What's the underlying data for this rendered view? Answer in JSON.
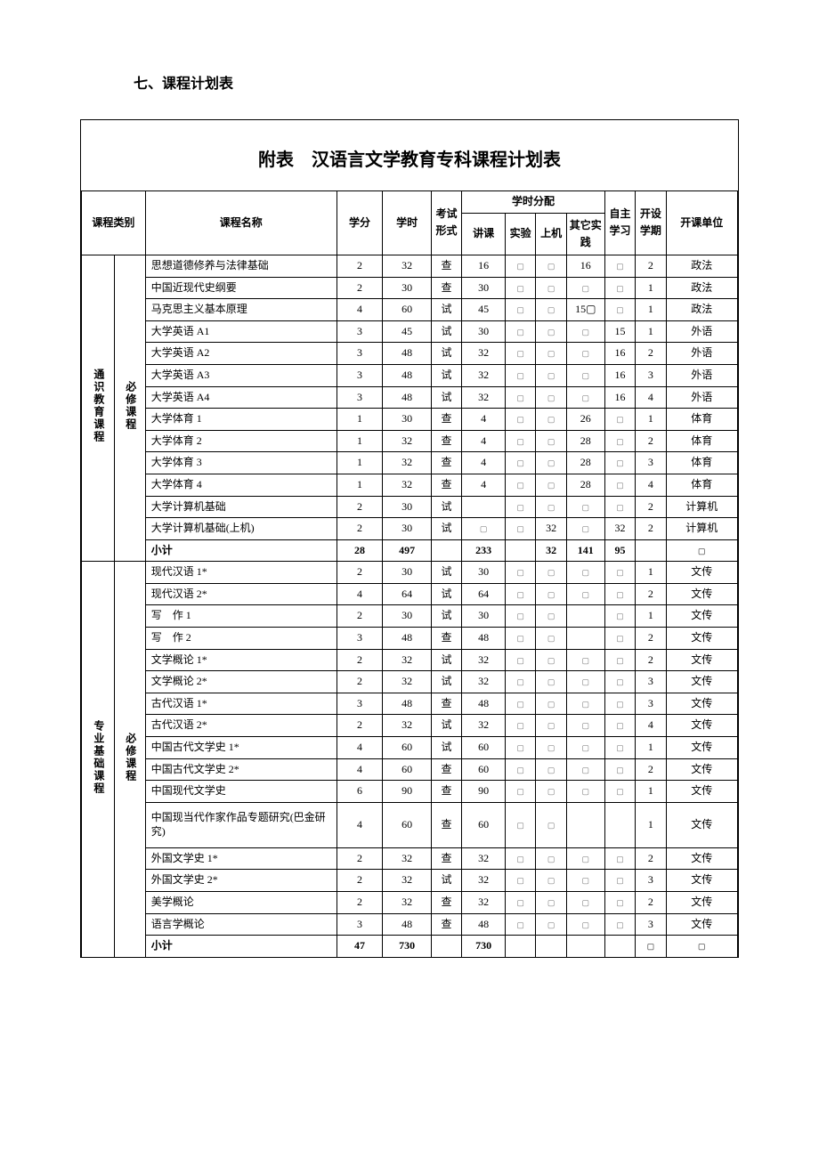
{
  "section_heading": "七、课程计划表",
  "table_title_prefix": "附表",
  "table_title_rest": "　汉语言文学教育专科课程计划表",
  "headers": {
    "category": "课程类别",
    "course_name": "课程名称",
    "credit": "学分",
    "hours": "学时",
    "exam_form": "考试形式",
    "hour_dist": "学时分配",
    "lecture": "讲课",
    "lab": "实验",
    "computer": "上机",
    "other_practice": "其它实践",
    "self_study": "自主学习",
    "semester": "开设学期",
    "department": "开课单位"
  },
  "groups": [
    {
      "cat1": "通识教育课程",
      "cat2": "必修课程",
      "rows": [
        {
          "name": "思想道德修养与法律基础",
          "credit": "2",
          "hours": "32",
          "exam": "查",
          "lecture": "16",
          "lab": "▢",
          "comp": "▢",
          "other": "16",
          "self": "▢",
          "sem": "2",
          "dept": "政法"
        },
        {
          "name": "中国近现代史纲要",
          "credit": "2",
          "hours": "30",
          "exam": "查",
          "lecture": "30",
          "lab": "▢",
          "comp": "▢",
          "other": "▢",
          "self": "▢",
          "sem": "1",
          "dept": "政法"
        },
        {
          "name": "马克思主义基本原理",
          "credit": "4",
          "hours": "60",
          "exam": "试",
          "lecture": "45",
          "lab": "▢",
          "comp": "▢",
          "other": "15▢",
          "self": "▢",
          "sem": "1",
          "dept": "政法"
        },
        {
          "name": "大学英语 A1",
          "credit": "3",
          "hours": "45",
          "exam": "试",
          "lecture": "30",
          "lab": "▢",
          "comp": "▢",
          "other": "▢",
          "self": "15",
          "sem": "1",
          "dept": "外语"
        },
        {
          "name": "大学英语 A2",
          "credit": "3",
          "hours": "48",
          "exam": "试",
          "lecture": "32",
          "lab": "▢",
          "comp": "▢",
          "other": "▢",
          "self": "16",
          "sem": "2",
          "dept": "外语"
        },
        {
          "name": "大学英语 A3",
          "credit": "3",
          "hours": "48",
          "exam": "试",
          "lecture": "32",
          "lab": "▢",
          "comp": "▢",
          "other": "▢",
          "self": "16",
          "sem": "3",
          "dept": "外语"
        },
        {
          "name": "大学英语 A4",
          "credit": "3",
          "hours": "48",
          "exam": "试",
          "lecture": "32",
          "lab": "▢",
          "comp": "▢",
          "other": "▢",
          "self": "16",
          "sem": "4",
          "dept": "外语"
        },
        {
          "name": "大学体育 1",
          "credit": "1",
          "hours": "30",
          "exam": "查",
          "lecture": "4",
          "lab": "▢",
          "comp": "▢",
          "other": "26",
          "self": "▢",
          "sem": "1",
          "dept": "体育"
        },
        {
          "name": "大学体育 2",
          "credit": "1",
          "hours": "32",
          "exam": "查",
          "lecture": "4",
          "lab": "▢",
          "comp": "▢",
          "other": "28",
          "self": "▢",
          "sem": "2",
          "dept": "体育"
        },
        {
          "name": "大学体育 3",
          "credit": "1",
          "hours": "32",
          "exam": "查",
          "lecture": "4",
          "lab": "▢",
          "comp": "▢",
          "other": "28",
          "self": "▢",
          "sem": "3",
          "dept": "体育"
        },
        {
          "name": "大学体育 4",
          "credit": "1",
          "hours": "32",
          "exam": "查",
          "lecture": "4",
          "lab": "▢",
          "comp": "▢",
          "other": "28",
          "self": "▢",
          "sem": "4",
          "dept": "体育"
        },
        {
          "name": "大学计算机基础",
          "credit": "2",
          "hours": "30",
          "exam": "试",
          "lecture": "",
          "lab": "▢",
          "comp": "▢",
          "other": "▢",
          "self": "▢",
          "sem": "2",
          "dept": "计算机"
        },
        {
          "name": "大学计算机基础(上机)",
          "credit": "2",
          "hours": "30",
          "exam": "试",
          "lecture": "▢",
          "lab": "▢",
          "comp": "32",
          "other": "▢",
          "self": "32",
          "sem": "2",
          "dept": "计算机"
        }
      ],
      "subtotal": {
        "name": "小计",
        "credit": "28",
        "hours": "497",
        "exam": "",
        "lecture": "233",
        "lab": "",
        "comp": "32",
        "other": "141",
        "self": "95",
        "sem": "",
        "dept": "▢"
      }
    },
    {
      "cat1": "专业基础课程",
      "cat2": "必修课程",
      "rows": [
        {
          "name": "现代汉语 1*",
          "credit": "2",
          "hours": "30",
          "exam": "试",
          "lecture": "30",
          "lab": "▢",
          "comp": "▢",
          "other": "▢",
          "self": "▢",
          "sem": "1",
          "dept": "文传"
        },
        {
          "name": "现代汉语 2*",
          "credit": "4",
          "hours": "64",
          "exam": "试",
          "lecture": "64",
          "lab": "▢",
          "comp": "▢",
          "other": "▢",
          "self": "▢",
          "sem": "2",
          "dept": "文传"
        },
        {
          "name": "写　作 1",
          "credit": "2",
          "hours": "30",
          "exam": "试",
          "lecture": "30",
          "lab": "▢",
          "comp": "▢",
          "other": "",
          "self": "▢",
          "sem": "1",
          "dept": "文传"
        },
        {
          "name": "写　作 2",
          "credit": "3",
          "hours": "48",
          "exam": "查",
          "lecture": "48",
          "lab": "▢",
          "comp": "▢",
          "other": "",
          "self": "▢",
          "sem": "2",
          "dept": "文传"
        },
        {
          "name": "文学概论 1*",
          "credit": "2",
          "hours": "32",
          "exam": "试",
          "lecture": "32",
          "lab": "▢",
          "comp": "▢",
          "other": "▢",
          "self": "▢",
          "sem": "2",
          "dept": "文传"
        },
        {
          "name": "文学概论 2*",
          "credit": "2",
          "hours": "32",
          "exam": "试",
          "lecture": "32",
          "lab": "▢",
          "comp": "▢",
          "other": "▢",
          "self": "▢",
          "sem": "3",
          "dept": "文传"
        },
        {
          "name": "古代汉语 1*",
          "credit": "3",
          "hours": "48",
          "exam": "查",
          "lecture": "48",
          "lab": "▢",
          "comp": "▢",
          "other": "▢",
          "self": "▢",
          "sem": "3",
          "dept": "文传"
        },
        {
          "name": "古代汉语 2*",
          "credit": "2",
          "hours": "32",
          "exam": "试",
          "lecture": "32",
          "lab": "▢",
          "comp": "▢",
          "other": "▢",
          "self": "▢",
          "sem": "4",
          "dept": "文传"
        },
        {
          "name": "中国古代文学史 1*",
          "credit": "4",
          "hours": "60",
          "exam": "试",
          "lecture": "60",
          "lab": "▢",
          "comp": "▢",
          "other": "▢",
          "self": "▢",
          "sem": "1",
          "dept": "文传"
        },
        {
          "name": "中国古代文学史 2*",
          "credit": "4",
          "hours": "60",
          "exam": "查",
          "lecture": "60",
          "lab": "▢",
          "comp": "▢",
          "other": "▢",
          "self": "▢",
          "sem": "2",
          "dept": "文传"
        },
        {
          "name": "中国现代文学史",
          "credit": "6",
          "hours": "90",
          "exam": "查",
          "lecture": "90",
          "lab": "▢",
          "comp": "▢",
          "other": "▢",
          "self": "▢",
          "sem": "1",
          "dept": "文传"
        },
        {
          "name": "中国现当代作家作品专题研究(巴金研究)",
          "credit": "4",
          "hours": "60",
          "exam": "查",
          "lecture": "60",
          "lab": "▢",
          "comp": "▢",
          "other": "",
          "self": "",
          "sem": "1",
          "dept": "文传",
          "tall": true
        },
        {
          "name": "外国文学史 1*",
          "credit": "2",
          "hours": "32",
          "exam": "查",
          "lecture": "32",
          "lab": "▢",
          "comp": "▢",
          "other": "▢",
          "self": "▢",
          "sem": "2",
          "dept": "文传"
        },
        {
          "name": "外国文学史 2*",
          "credit": "2",
          "hours": "32",
          "exam": "试",
          "lecture": "32",
          "lab": "▢",
          "comp": "▢",
          "other": "▢",
          "self": "▢",
          "sem": "3",
          "dept": "文传"
        },
        {
          "name": "美学概论",
          "credit": "2",
          "hours": "32",
          "exam": "查",
          "lecture": "32",
          "lab": "▢",
          "comp": "▢",
          "other": "▢",
          "self": "▢",
          "sem": "2",
          "dept": "文传"
        },
        {
          "name": "语言学概论",
          "credit": "3",
          "hours": "48",
          "exam": "查",
          "lecture": "48",
          "lab": "▢",
          "comp": "▢",
          "other": "▢",
          "self": "▢",
          "sem": "3",
          "dept": "文传"
        }
      ],
      "subtotal": {
        "name": "小计",
        "credit": "47",
        "hours": "730",
        "exam": "",
        "lecture": "730",
        "lab": "",
        "comp": "",
        "other": "",
        "self": "",
        "sem": "▢",
        "dept": "▢"
      }
    }
  ]
}
